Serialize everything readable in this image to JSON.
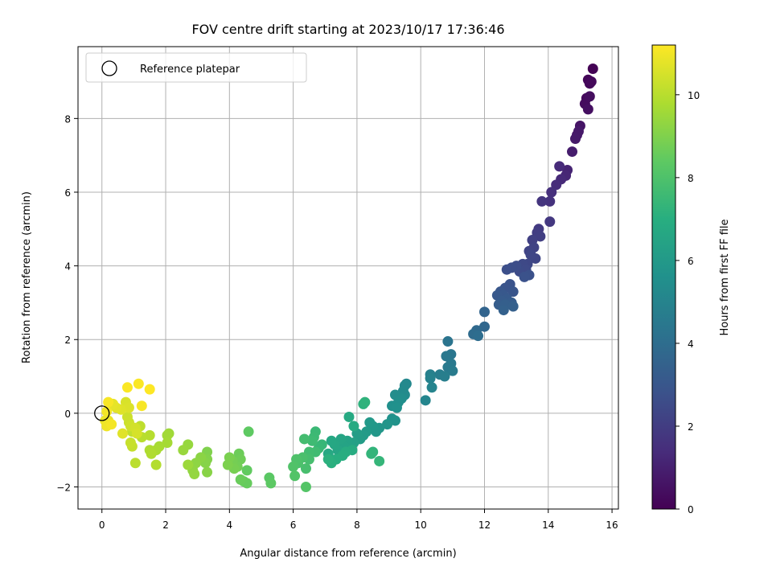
{
  "chart_data": {
    "type": "scatter",
    "title": "FOV centre drift starting at 2023/10/17 17:36:46",
    "xlabel": "Angular distance from reference (arcmin)",
    "ylabel": "Rotation from reference (arcmin)",
    "xlim": [
      -0.75,
      16.2
    ],
    "ylim": [
      -2.6,
      9.95
    ],
    "xticks": [
      0,
      2,
      4,
      6,
      8,
      10,
      12,
      14,
      16
    ],
    "yticks": [
      -2,
      0,
      2,
      4,
      6,
      8
    ],
    "grid": true,
    "legend": {
      "placement": "top-left",
      "entries": [
        {
          "label": "Reference platepar",
          "marker": "open-circle"
        }
      ]
    },
    "reference_point": {
      "x": 0,
      "y": 0
    },
    "colorbar": {
      "label": "Hours from first FF file",
      "range": [
        0,
        11.2
      ],
      "ticks": [
        0,
        2,
        4,
        6,
        8,
        10
      ],
      "colormap": "viridis"
    },
    "colormap_stops": [
      "#440154",
      "#472d7b",
      "#3b528b",
      "#2c728e",
      "#21918c",
      "#28ae80",
      "#5ec962",
      "#addc30",
      "#fde725"
    ],
    "points": [
      [
        15.4,
        9.35,
        0.05
      ],
      [
        15.25,
        9.05,
        0.15
      ],
      [
        15.3,
        8.95,
        0.2
      ],
      [
        15.35,
        9.0,
        0.25
      ],
      [
        15.2,
        8.55,
        0.3
      ],
      [
        15.15,
        8.4,
        0.35
      ],
      [
        15.3,
        8.6,
        0.4
      ],
      [
        15.25,
        8.25,
        0.45
      ],
      [
        15.0,
        7.8,
        0.6
      ],
      [
        14.9,
        7.55,
        0.7
      ],
      [
        14.95,
        7.65,
        0.75
      ],
      [
        14.85,
        7.45,
        0.8
      ],
      [
        14.75,
        7.1,
        0.9
      ],
      [
        14.6,
        6.6,
        1.1
      ],
      [
        14.55,
        6.45,
        1.2
      ],
      [
        14.4,
        6.35,
        1.3
      ],
      [
        14.35,
        6.7,
        1.35
      ],
      [
        14.25,
        6.2,
        1.4
      ],
      [
        14.1,
        6.0,
        1.5
      ],
      [
        14.05,
        5.75,
        1.6
      ],
      [
        13.8,
        5.75,
        1.7
      ],
      [
        14.05,
        5.2,
        1.8
      ],
      [
        13.7,
        5.0,
        1.9
      ],
      [
        13.65,
        4.9,
        2.0
      ],
      [
        13.75,
        4.8,
        2.05
      ],
      [
        13.5,
        4.7,
        2.1
      ],
      [
        13.55,
        4.5,
        2.2
      ],
      [
        13.4,
        4.4,
        2.25
      ],
      [
        13.6,
        4.2,
        2.3
      ],
      [
        13.45,
        4.3,
        2.35
      ],
      [
        13.35,
        4.05,
        2.4
      ],
      [
        13.2,
        4.05,
        2.45
      ],
      [
        13.3,
        3.9,
        2.5
      ],
      [
        13.1,
        3.85,
        2.55
      ],
      [
        13.0,
        4.0,
        2.6
      ],
      [
        12.85,
        3.95,
        2.65
      ],
      [
        12.7,
        3.9,
        2.7
      ],
      [
        13.4,
        3.75,
        2.75
      ],
      [
        13.25,
        3.7,
        2.8
      ],
      [
        12.8,
        3.5,
        2.85
      ],
      [
        12.65,
        3.4,
        2.9
      ],
      [
        12.9,
        3.3,
        2.95
      ],
      [
        12.5,
        3.3,
        3.0
      ],
      [
        12.6,
        3.2,
        3.05
      ],
      [
        12.4,
        3.2,
        3.1
      ],
      [
        12.7,
        3.1,
        3.15
      ],
      [
        12.55,
        3.05,
        3.2
      ],
      [
        12.85,
        3.0,
        3.25
      ],
      [
        12.45,
        2.95,
        3.3
      ],
      [
        12.65,
        2.95,
        3.35
      ],
      [
        12.9,
        2.9,
        3.4
      ],
      [
        12.6,
        2.8,
        3.45
      ],
      [
        12.0,
        2.75,
        3.6
      ],
      [
        12.0,
        2.35,
        3.7
      ],
      [
        11.75,
        2.25,
        3.8
      ],
      [
        11.65,
        2.15,
        3.9
      ],
      [
        11.8,
        2.1,
        4.0
      ],
      [
        10.85,
        1.95,
        4.3
      ],
      [
        10.95,
        1.6,
        4.4
      ],
      [
        10.8,
        1.55,
        4.45
      ],
      [
        10.95,
        1.35,
        4.5
      ],
      [
        10.85,
        1.25,
        4.55
      ],
      [
        11.0,
        1.15,
        4.6
      ],
      [
        10.6,
        1.05,
        4.7
      ],
      [
        10.75,
        1.0,
        4.75
      ],
      [
        10.3,
        1.05,
        4.85
      ],
      [
        10.3,
        0.95,
        4.9
      ],
      [
        10.35,
        0.7,
        5.0
      ],
      [
        10.15,
        0.35,
        5.05
      ],
      [
        9.55,
        0.8,
        5.2
      ],
      [
        9.5,
        0.75,
        5.25
      ],
      [
        9.45,
        0.6,
        5.3
      ],
      [
        9.5,
        0.5,
        5.35
      ],
      [
        9.2,
        0.5,
        5.4
      ],
      [
        9.4,
        0.4,
        5.45
      ],
      [
        9.3,
        0.3,
        5.5
      ],
      [
        9.1,
        0.2,
        5.55
      ],
      [
        9.25,
        0.15,
        5.6
      ],
      [
        9.1,
        -0.15,
        5.65
      ],
      [
        9.2,
        -0.2,
        5.7
      ],
      [
        8.95,
        -0.3,
        5.8
      ],
      [
        8.7,
        -0.4,
        5.85
      ],
      [
        8.6,
        -0.5,
        5.9
      ],
      [
        8.5,
        -0.35,
        5.95
      ],
      [
        8.4,
        -0.25,
        6.0
      ],
      [
        8.3,
        -0.5,
        6.05
      ],
      [
        8.2,
        -0.6,
        6.1
      ],
      [
        8.1,
        -0.7,
        6.15
      ],
      [
        8.0,
        -0.55,
        6.2
      ],
      [
        7.9,
        -0.8,
        6.3
      ],
      [
        7.8,
        -0.85,
        6.35
      ],
      [
        7.7,
        -0.75,
        6.4
      ],
      [
        7.6,
        -0.9,
        6.45
      ],
      [
        7.5,
        -0.7,
        6.5
      ],
      [
        7.4,
        -1.0,
        6.55
      ],
      [
        7.3,
        -0.85,
        6.6
      ],
      [
        7.2,
        -0.75,
        6.65
      ],
      [
        7.1,
        -1.1,
        6.7
      ],
      [
        7.75,
        -0.1,
        6.75
      ],
      [
        7.9,
        -0.35,
        6.8
      ],
      [
        7.85,
        -1.0,
        6.85
      ],
      [
        7.65,
        -1.05,
        6.9
      ],
      [
        7.55,
        -1.15,
        6.95
      ],
      [
        7.35,
        -1.25,
        7.0
      ],
      [
        7.2,
        -1.35,
        7.05
      ],
      [
        7.1,
        -1.25,
        7.1
      ],
      [
        8.2,
        0.25,
        7.15
      ],
      [
        8.25,
        0.3,
        7.2
      ],
      [
        8.5,
        -1.05,
        7.25
      ],
      [
        8.45,
        -1.1,
        7.3
      ],
      [
        8.7,
        -1.3,
        7.35
      ],
      [
        6.9,
        -0.85,
        7.4
      ],
      [
        6.8,
        -0.95,
        7.45
      ],
      [
        6.7,
        -0.5,
        7.5
      ],
      [
        6.65,
        -0.65,
        7.55
      ],
      [
        6.6,
        -0.75,
        7.6
      ],
      [
        6.7,
        -1.05,
        7.65
      ],
      [
        6.5,
        -1.05,
        7.7
      ],
      [
        6.35,
        -0.7,
        7.75
      ],
      [
        6.5,
        -1.25,
        7.8
      ],
      [
        6.4,
        -1.5,
        7.85
      ],
      [
        6.3,
        -1.2,
        7.9
      ],
      [
        6.15,
        -1.35,
        7.95
      ],
      [
        6.1,
        -1.25,
        8.0
      ],
      [
        6.0,
        -1.45,
        8.05
      ],
      [
        6.05,
        -1.7,
        8.1
      ],
      [
        6.4,
        -2.0,
        8.15
      ],
      [
        5.25,
        -1.75,
        8.3
      ],
      [
        5.3,
        -1.9,
        8.35
      ],
      [
        4.6,
        -0.5,
        8.4
      ],
      [
        4.55,
        -1.55,
        8.45
      ],
      [
        4.45,
        -1.85,
        8.5
      ],
      [
        4.55,
        -1.9,
        8.55
      ],
      [
        4.35,
        -1.8,
        8.6
      ],
      [
        4.3,
        -1.1,
        8.65
      ],
      [
        4.35,
        -1.25,
        8.7
      ],
      [
        4.25,
        -1.45,
        8.75
      ],
      [
        4.1,
        -1.3,
        8.8
      ],
      [
        4.15,
        -1.5,
        8.85
      ],
      [
        4.0,
        -1.2,
        8.9
      ],
      [
        3.95,
        -1.4,
        8.95
      ],
      [
        3.3,
        -1.05,
        9.0
      ],
      [
        3.3,
        -1.25,
        9.05
      ],
      [
        3.25,
        -1.35,
        9.1
      ],
      [
        3.3,
        -1.6,
        9.15
      ],
      [
        3.1,
        -1.2,
        9.2
      ],
      [
        2.95,
        -1.35,
        9.25
      ],
      [
        2.85,
        -1.55,
        9.3
      ],
      [
        2.9,
        -1.65,
        9.35
      ],
      [
        2.7,
        -0.85,
        9.4
      ],
      [
        2.55,
        -1.0,
        9.45
      ],
      [
        2.7,
        -1.4,
        9.5
      ],
      [
        2.1,
        -0.55,
        9.55
      ],
      [
        2.05,
        -0.6,
        9.6
      ],
      [
        2.05,
        -0.8,
        9.65
      ],
      [
        1.8,
        -0.9,
        9.7
      ],
      [
        1.7,
        -1.0,
        9.75
      ],
      [
        1.5,
        -1.0,
        9.8
      ],
      [
        1.55,
        -1.1,
        9.85
      ],
      [
        1.7,
        -1.4,
        9.9
      ],
      [
        1.5,
        -0.6,
        9.95
      ],
      [
        1.25,
        -0.65,
        10.0
      ],
      [
        1.05,
        -1.35,
        10.05
      ],
      [
        1.2,
        -0.35,
        10.1
      ],
      [
        0.95,
        -0.5,
        10.15
      ],
      [
        0.95,
        -0.9,
        10.2
      ],
      [
        0.9,
        -0.8,
        10.25
      ],
      [
        0.85,
        -0.25,
        10.3
      ],
      [
        0.8,
        -0.1,
        10.35
      ],
      [
        0.9,
        -0.35,
        10.4
      ],
      [
        1.05,
        -0.4,
        10.45
      ],
      [
        1.1,
        -0.55,
        10.5
      ],
      [
        0.75,
        0.3,
        10.55
      ],
      [
        0.85,
        0.15,
        10.6
      ],
      [
        0.6,
        0.1,
        10.65
      ],
      [
        0.65,
        -0.55,
        10.7
      ],
      [
        0.45,
        0.15,
        10.75
      ],
      [
        0.35,
        0.25,
        10.8
      ],
      [
        0.2,
        -0.2,
        10.85
      ],
      [
        0.1,
        -0.2,
        10.9
      ],
      [
        0.15,
        -0.35,
        10.95
      ],
      [
        0.15,
        0.05,
        11.0
      ],
      [
        0.3,
        -0.3,
        11.05
      ],
      [
        0.2,
        0.3,
        11.1
      ],
      [
        1.25,
        0.2,
        11.1
      ],
      [
        0.8,
        0.7,
        11.15
      ],
      [
        1.15,
        0.8,
        11.15
      ],
      [
        1.5,
        0.65,
        11.2
      ]
    ]
  }
}
